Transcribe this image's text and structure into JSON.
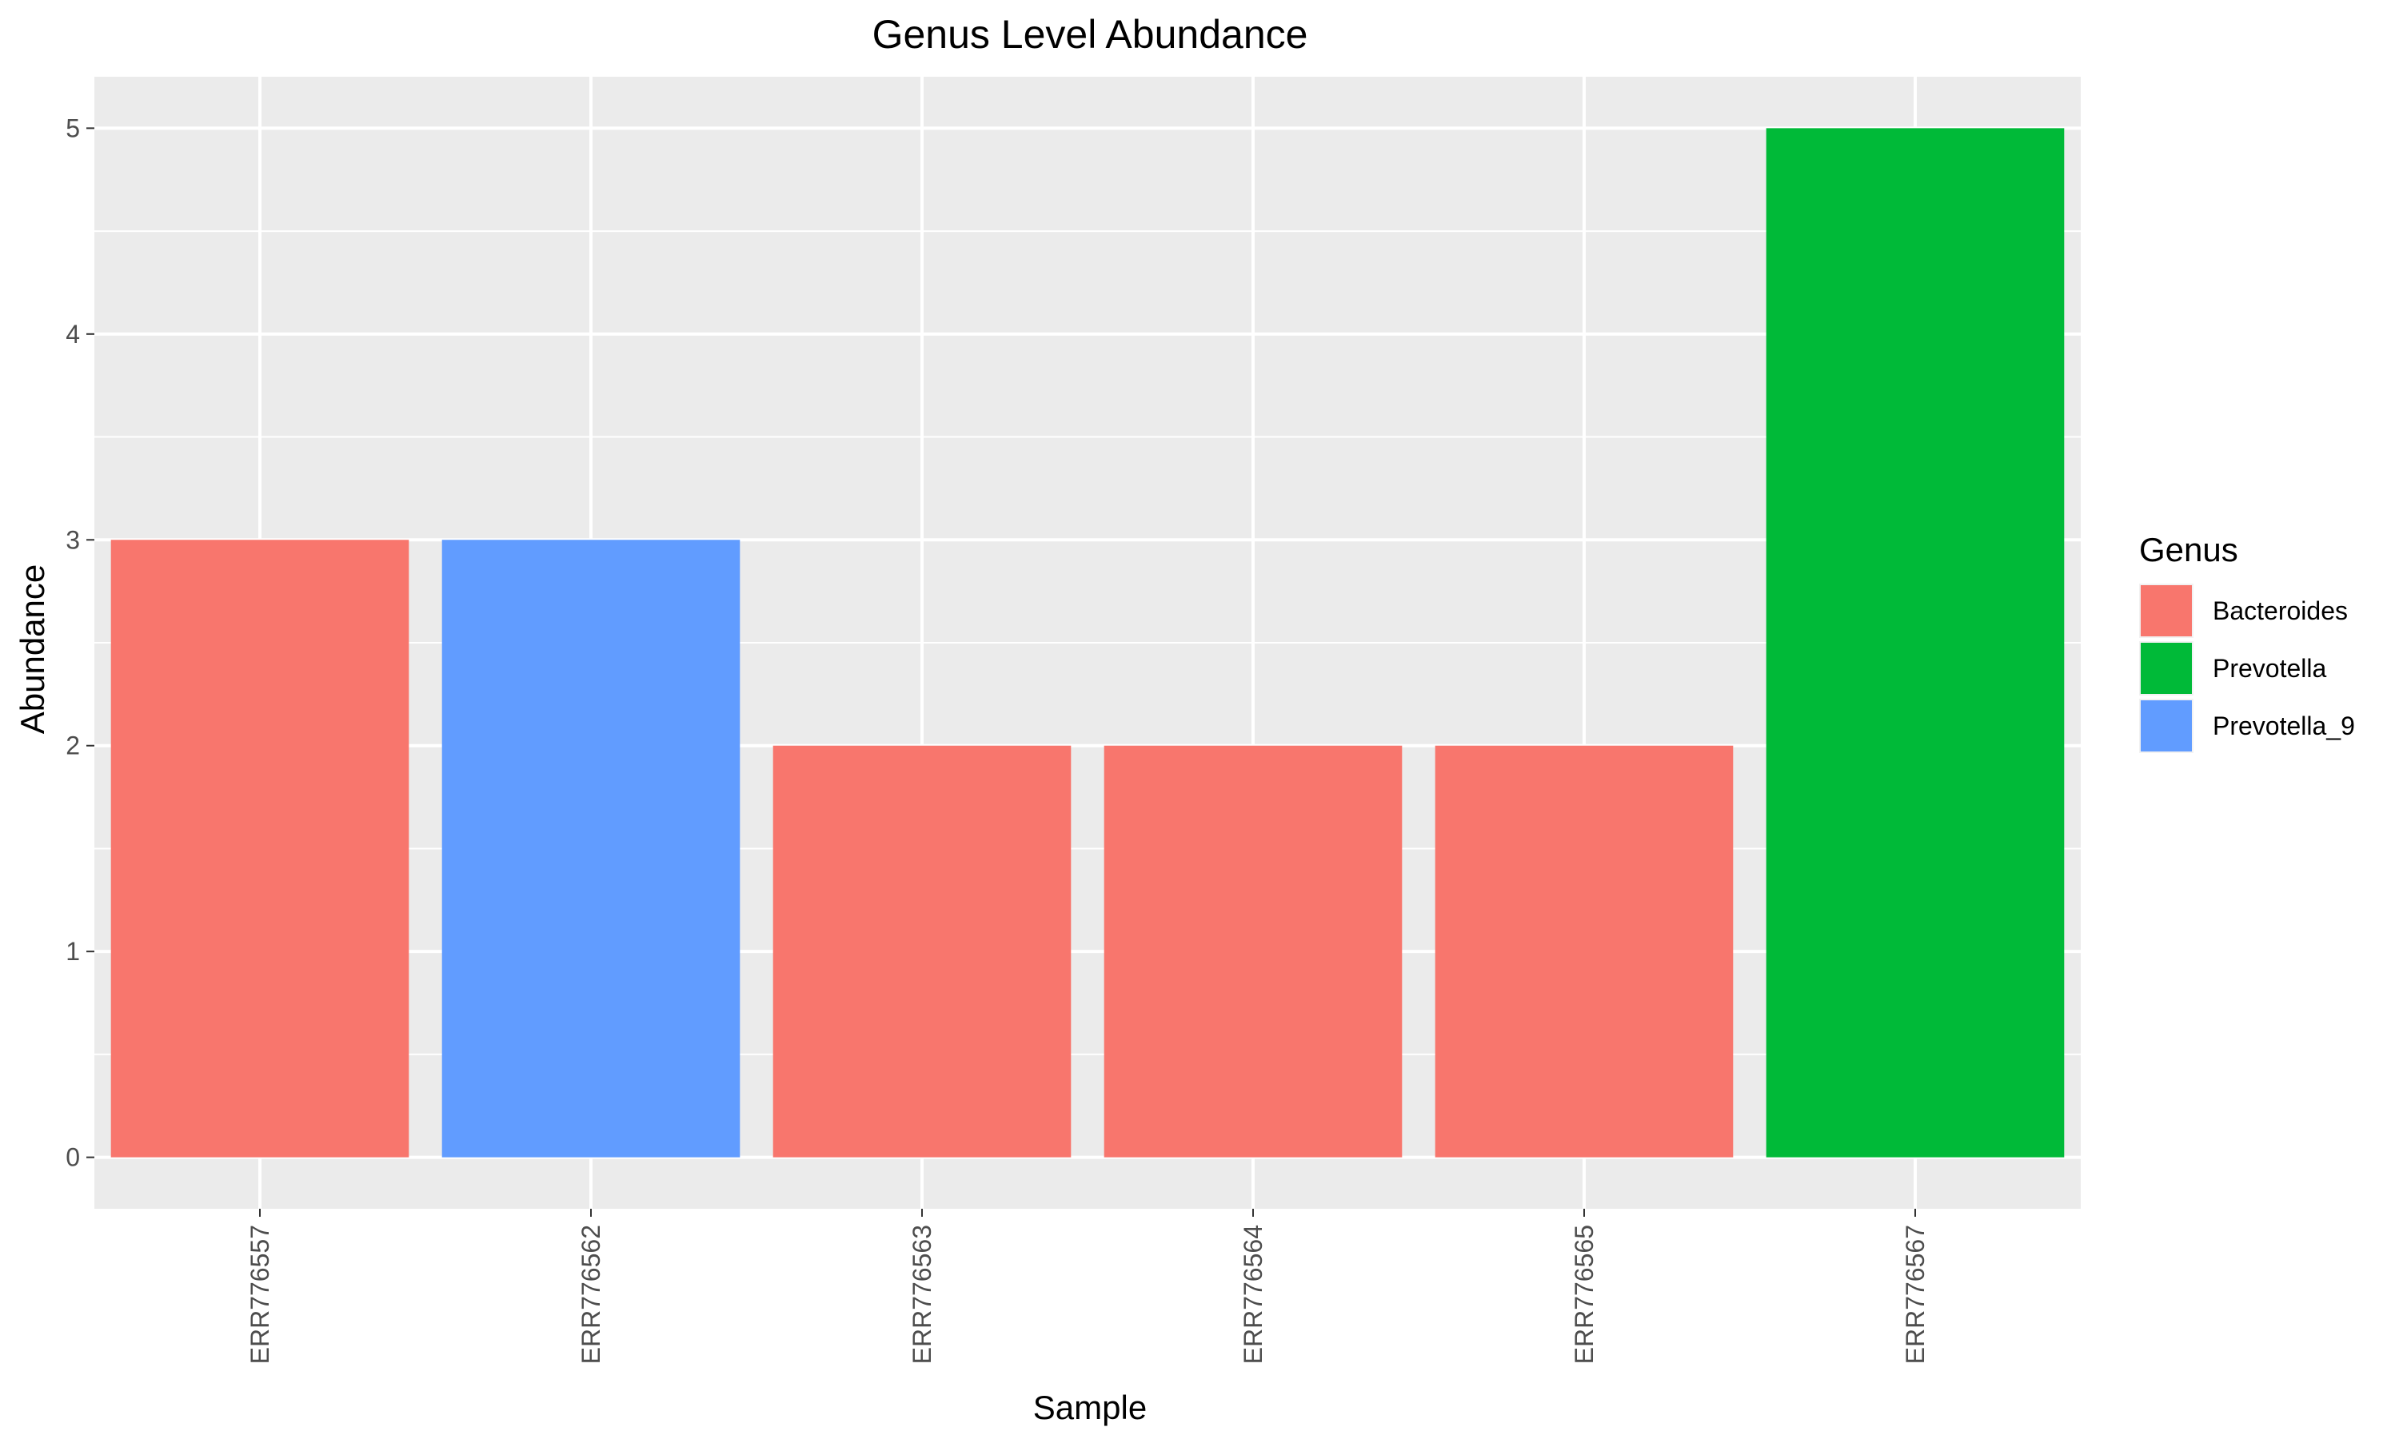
{
  "chart_data": {
    "type": "bar",
    "title": "Genus Level Abundance",
    "xlabel": "Sample",
    "ylabel": "Abundance",
    "categories": [
      "ERR776557",
      "ERR776562",
      "ERR776563",
      "ERR776564",
      "ERR776565",
      "ERR776567"
    ],
    "values": [
      3,
      3,
      2,
      2,
      2,
      5
    ],
    "genus": [
      "Bacteroides",
      "Prevotella_9",
      "Bacteroides",
      "Bacteroides",
      "Bacteroides",
      "Prevotella"
    ],
    "ylim": [
      -0.25,
      5.25
    ],
    "yticks": [
      "0",
      "1",
      "2",
      "3",
      "4",
      "5"
    ],
    "grid": true,
    "legend": {
      "title": "Genus",
      "placement": "right",
      "entries": [
        {
          "label": "Bacteroides",
          "color": "#F8766D"
        },
        {
          "label": "Prevotella",
          "color": "#00BA38"
        },
        {
          "label": "Prevotella_9",
          "color": "#619CFF"
        }
      ]
    },
    "colors": {
      "panel_background": "#EBEBEB",
      "grid": "#FFFFFF",
      "tick": "#333333"
    }
  }
}
